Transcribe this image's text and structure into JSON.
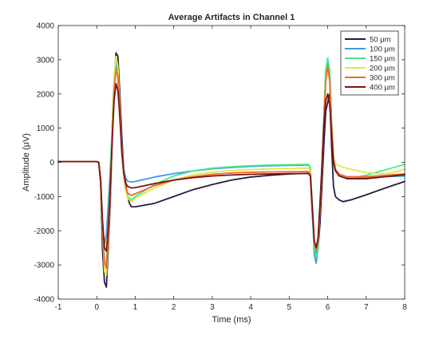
{
  "chart_data": {
    "type": "line",
    "title": "Average Artifacts in Channel 1",
    "xlabel": "Time (ms)",
    "ylabel": "Amplitude (μV)",
    "xlim": [
      -1,
      8
    ],
    "ylim": [
      -4000,
      4000
    ],
    "x_ticks": [
      -1,
      0,
      1,
      2,
      3,
      4,
      5,
      6,
      7,
      8
    ],
    "y_ticks": [
      -4000,
      -3000,
      -2000,
      -1000,
      0,
      1000,
      2000,
      3000,
      4000
    ],
    "x_tick_labels": [
      "-1",
      "0",
      "1",
      "2",
      "3",
      "4",
      "5",
      "6",
      "7",
      "8"
    ],
    "y_tick_labels": [
      "-4000",
      "-3000",
      "-2000",
      "-1000",
      "0",
      "1000",
      "2000",
      "3000",
      "4000"
    ],
    "grid": false,
    "legend_position": "top-right",
    "series": [
      {
        "name": "50 μm",
        "color": "#2a1a44",
        "points": [
          [
            -1,
            20
          ],
          [
            0,
            20
          ],
          [
            0.05,
            0
          ],
          [
            0.1,
            -600
          ],
          [
            0.15,
            -2600
          ],
          [
            0.2,
            -3500
          ],
          [
            0.25,
            -3650
          ],
          [
            0.3,
            -2500
          ],
          [
            0.35,
            -1200
          ],
          [
            0.4,
            700
          ],
          [
            0.45,
            2300
          ],
          [
            0.5,
            3200
          ],
          [
            0.55,
            3100
          ],
          [
            0.6,
            2000
          ],
          [
            0.65,
            800
          ],
          [
            0.7,
            -200
          ],
          [
            0.75,
            -600
          ],
          [
            0.8,
            -1000
          ],
          [
            0.85,
            -1200
          ],
          [
            0.9,
            -1300
          ],
          [
            1,
            -1300
          ],
          [
            1.5,
            -1200
          ],
          [
            2,
            -1000
          ],
          [
            2.5,
            -800
          ],
          [
            3,
            -650
          ],
          [
            3.5,
            -520
          ],
          [
            4,
            -430
          ],
          [
            4.5,
            -380
          ],
          [
            5,
            -340
          ],
          [
            5.5,
            -320
          ],
          [
            5.55,
            -400
          ],
          [
            5.6,
            -1500
          ],
          [
            5.65,
            -2400
          ],
          [
            5.7,
            -2700
          ],
          [
            5.75,
            -2500
          ],
          [
            5.8,
            -1800
          ],
          [
            5.85,
            -700
          ],
          [
            5.9,
            500
          ],
          [
            5.95,
            1500
          ],
          [
            6.05,
            2000
          ],
          [
            6.1,
            500
          ],
          [
            6.15,
            -700
          ],
          [
            6.2,
            -1000
          ],
          [
            6.3,
            -1100
          ],
          [
            6.4,
            -1150
          ],
          [
            6.6,
            -1100
          ],
          [
            7,
            -950
          ],
          [
            7.5,
            -750
          ],
          [
            8,
            -560
          ]
        ]
      },
      {
        "name": "100 μm",
        "color": "#3d9be9",
        "points": [
          [
            -1,
            20
          ],
          [
            0,
            20
          ],
          [
            0.05,
            0
          ],
          [
            0.1,
            -500
          ],
          [
            0.15,
            -1900
          ],
          [
            0.2,
            -2400
          ],
          [
            0.25,
            -2100
          ],
          [
            0.3,
            -1200
          ],
          [
            0.35,
            -200
          ],
          [
            0.4,
            1000
          ],
          [
            0.45,
            2300
          ],
          [
            0.5,
            2900
          ],
          [
            0.55,
            2500
          ],
          [
            0.6,
            1500
          ],
          [
            0.65,
            500
          ],
          [
            0.7,
            -200
          ],
          [
            0.75,
            -450
          ],
          [
            0.8,
            -550
          ],
          [
            0.9,
            -580
          ],
          [
            1,
            -560
          ],
          [
            1.5,
            -430
          ],
          [
            2,
            -330
          ],
          [
            2.5,
            -250
          ],
          [
            3,
            -190
          ],
          [
            3.5,
            -150
          ],
          [
            4,
            -120
          ],
          [
            4.5,
            -100
          ],
          [
            5,
            -90
          ],
          [
            5.5,
            -80
          ],
          [
            5.55,
            -150
          ],
          [
            5.6,
            -1400
          ],
          [
            5.65,
            -2700
          ],
          [
            5.7,
            -2950
          ],
          [
            5.75,
            -2500
          ],
          [
            5.8,
            -1400
          ],
          [
            5.85,
            -200
          ],
          [
            5.9,
            1300
          ],
          [
            5.95,
            2600
          ],
          [
            6,
            2900
          ],
          [
            6.05,
            2600
          ],
          [
            6.1,
            1200
          ],
          [
            6.15,
            100
          ],
          [
            6.2,
            -250
          ],
          [
            6.3,
            -350
          ],
          [
            6.5,
            -450
          ],
          [
            7,
            -450
          ],
          [
            7.5,
            -420
          ],
          [
            8,
            -400
          ]
        ]
      },
      {
        "name": "150 μm",
        "color": "#45e88f",
        "points": [
          [
            -1,
            20
          ],
          [
            0,
            20
          ],
          [
            0.05,
            0
          ],
          [
            0.1,
            -500
          ],
          [
            0.15,
            -2000
          ],
          [
            0.2,
            -3000
          ],
          [
            0.25,
            -2900
          ],
          [
            0.3,
            -1800
          ],
          [
            0.35,
            -500
          ],
          [
            0.4,
            1100
          ],
          [
            0.45,
            2500
          ],
          [
            0.5,
            3050
          ],
          [
            0.55,
            2700
          ],
          [
            0.6,
            1500
          ],
          [
            0.65,
            300
          ],
          [
            0.7,
            -400
          ],
          [
            0.75,
            -800
          ],
          [
            0.8,
            -1000
          ],
          [
            0.9,
            -1100
          ],
          [
            1,
            -1000
          ],
          [
            1.5,
            -650
          ],
          [
            2,
            -400
          ],
          [
            2.5,
            -250
          ],
          [
            3,
            -170
          ],
          [
            3.5,
            -130
          ],
          [
            4,
            -100
          ],
          [
            4.5,
            -80
          ],
          [
            5,
            -70
          ],
          [
            5.5,
            -60
          ],
          [
            5.55,
            -150
          ],
          [
            5.6,
            -1300
          ],
          [
            5.65,
            -2500
          ],
          [
            5.7,
            -2800
          ],
          [
            5.75,
            -2400
          ],
          [
            5.8,
            -1300
          ],
          [
            5.85,
            -100
          ],
          [
            5.9,
            1400
          ],
          [
            5.95,
            2700
          ],
          [
            6,
            3050
          ],
          [
            6.05,
            2700
          ],
          [
            6.1,
            1300
          ],
          [
            6.15,
            200
          ],
          [
            6.2,
            -200
          ],
          [
            6.3,
            -380
          ],
          [
            6.5,
            -480
          ],
          [
            7,
            -380
          ],
          [
            7.5,
            -220
          ],
          [
            8,
            -60
          ]
        ]
      },
      {
        "name": "200 μm",
        "color": "#e8e43f",
        "points": [
          [
            -1,
            20
          ],
          [
            0,
            20
          ],
          [
            0.05,
            0
          ],
          [
            0.1,
            -500
          ],
          [
            0.15,
            -2000
          ],
          [
            0.2,
            -3200
          ],
          [
            0.25,
            -3300
          ],
          [
            0.3,
            -2300
          ],
          [
            0.35,
            -900
          ],
          [
            0.4,
            900
          ],
          [
            0.45,
            2400
          ],
          [
            0.5,
            3100
          ],
          [
            0.55,
            2800
          ],
          [
            0.6,
            1600
          ],
          [
            0.65,
            400
          ],
          [
            0.7,
            -400
          ],
          [
            0.75,
            -800
          ],
          [
            0.8,
            -1050
          ],
          [
            0.9,
            -1150
          ],
          [
            1,
            -1050
          ],
          [
            1.5,
            -750
          ],
          [
            2,
            -520
          ],
          [
            2.5,
            -370
          ],
          [
            3,
            -290
          ],
          [
            3.5,
            -240
          ],
          [
            4,
            -210
          ],
          [
            4.5,
            -190
          ],
          [
            5,
            -180
          ],
          [
            5.5,
            -170
          ],
          [
            5.55,
            -250
          ],
          [
            5.6,
            -1200
          ],
          [
            5.65,
            -2300
          ],
          [
            5.7,
            -2600
          ],
          [
            5.75,
            -2300
          ],
          [
            5.8,
            -1300
          ],
          [
            5.85,
            -200
          ],
          [
            5.9,
            1200
          ],
          [
            5.95,
            2400
          ],
          [
            6,
            2800
          ],
          [
            6.05,
            2400
          ],
          [
            6.1,
            1100
          ],
          [
            6.15,
            200
          ],
          [
            6.2,
            -50
          ],
          [
            6.4,
            -150
          ],
          [
            6.6,
            -200
          ],
          [
            7,
            -300
          ],
          [
            7.4,
            -340
          ],
          [
            7.7,
            -300
          ],
          [
            8,
            -200
          ]
        ]
      },
      {
        "name": "300 μm",
        "color": "#ee6a2b",
        "points": [
          [
            -1,
            20
          ],
          [
            0,
            20
          ],
          [
            0.05,
            0
          ],
          [
            0.1,
            -500
          ],
          [
            0.15,
            -1900
          ],
          [
            0.2,
            -2900
          ],
          [
            0.25,
            -3100
          ],
          [
            0.3,
            -2300
          ],
          [
            0.35,
            -1000
          ],
          [
            0.4,
            700
          ],
          [
            0.45,
            2100
          ],
          [
            0.5,
            2700
          ],
          [
            0.55,
            2500
          ],
          [
            0.6,
            1500
          ],
          [
            0.65,
            400
          ],
          [
            0.7,
            -300
          ],
          [
            0.75,
            -700
          ],
          [
            0.8,
            -900
          ],
          [
            0.9,
            -970
          ],
          [
            1,
            -920
          ],
          [
            1.5,
            -680
          ],
          [
            2,
            -520
          ],
          [
            2.5,
            -420
          ],
          [
            3,
            -350
          ],
          [
            3.5,
            -310
          ],
          [
            4,
            -290
          ],
          [
            4.5,
            -280
          ],
          [
            5,
            -275
          ],
          [
            5.5,
            -270
          ],
          [
            5.55,
            -350
          ],
          [
            5.6,
            -1300
          ],
          [
            5.65,
            -2300
          ],
          [
            5.7,
            -2600
          ],
          [
            5.75,
            -2300
          ],
          [
            5.8,
            -1300
          ],
          [
            5.85,
            -200
          ],
          [
            5.9,
            1200
          ],
          [
            5.95,
            2400
          ],
          [
            6,
            2800
          ],
          [
            6.05,
            2400
          ],
          [
            6.1,
            1100
          ],
          [
            6.15,
            100
          ],
          [
            6.2,
            -200
          ],
          [
            6.3,
            -350
          ],
          [
            6.5,
            -420
          ],
          [
            7,
            -420
          ],
          [
            7.5,
            -380
          ],
          [
            8,
            -340
          ]
        ]
      },
      {
        "name": "400 μm",
        "color": "#7b1313",
        "points": [
          [
            -1,
            20
          ],
          [
            0,
            20
          ],
          [
            0.05,
            0
          ],
          [
            0.1,
            -500
          ],
          [
            0.15,
            -1700
          ],
          [
            0.2,
            -2500
          ],
          [
            0.25,
            -2600
          ],
          [
            0.3,
            -1900
          ],
          [
            0.35,
            -800
          ],
          [
            0.4,
            600
          ],
          [
            0.45,
            1800
          ],
          [
            0.5,
            2300
          ],
          [
            0.55,
            2100
          ],
          [
            0.6,
            1300
          ],
          [
            0.65,
            300
          ],
          [
            0.7,
            -300
          ],
          [
            0.75,
            -600
          ],
          [
            0.8,
            -700
          ],
          [
            0.9,
            -750
          ],
          [
            1,
            -740
          ],
          [
            1.5,
            -620
          ],
          [
            2,
            -520
          ],
          [
            2.5,
            -450
          ],
          [
            3,
            -400
          ],
          [
            3.5,
            -370
          ],
          [
            4,
            -350
          ],
          [
            4.5,
            -340
          ],
          [
            5,
            -330
          ],
          [
            5.5,
            -330
          ],
          [
            5.55,
            -400
          ],
          [
            5.6,
            -1300
          ],
          [
            5.65,
            -2300
          ],
          [
            5.7,
            -2500
          ],
          [
            5.75,
            -2200
          ],
          [
            5.8,
            -1200
          ],
          [
            5.85,
            -100
          ],
          [
            5.9,
            1100
          ],
          [
            5.95,
            1800
          ],
          [
            6,
            2000
          ],
          [
            6.05,
            1700
          ],
          [
            6.1,
            800
          ],
          [
            6.15,
            0
          ],
          [
            6.2,
            -250
          ],
          [
            6.3,
            -400
          ],
          [
            6.5,
            -480
          ],
          [
            7,
            -480
          ],
          [
            7.5,
            -420
          ],
          [
            8,
            -360
          ]
        ]
      }
    ]
  }
}
